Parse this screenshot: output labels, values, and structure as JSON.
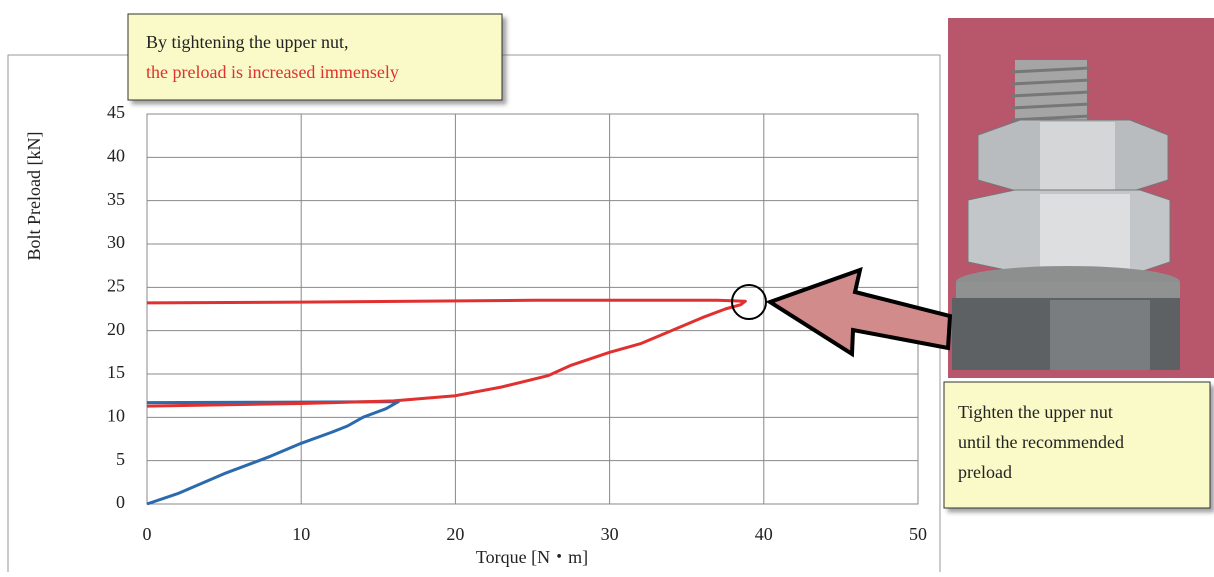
{
  "chart_data": {
    "type": "line",
    "xlabel": "Torque [N・m]",
    "ylabel": "Bolt Preload [kN]",
    "xlim": [
      0,
      50
    ],
    "xticks": [
      0,
      10,
      20,
      30,
      40,
      50
    ],
    "ylim": [
      0,
      45
    ],
    "yticks": [
      0,
      5,
      10,
      15,
      20,
      25,
      30,
      35,
      40,
      45
    ],
    "grid": true,
    "series": [
      {
        "color": "#2a6aad",
        "x": [
          0,
          2,
          5,
          8,
          10,
          12,
          13,
          14,
          15.5,
          16.3,
          8,
          0
        ],
        "values": [
          0,
          1.2,
          3.5,
          5.5,
          7,
          8.3,
          9,
          10,
          11,
          11.8,
          11.75,
          11.7
        ]
      },
      {
        "color": "#e03030",
        "x": [
          0,
          10,
          16,
          20,
          23,
          26,
          27.5,
          30,
          32,
          34,
          36,
          37.5,
          38.5,
          38.8,
          37,
          25,
          10,
          0
        ],
        "values": [
          11.3,
          11.6,
          11.9,
          12.5,
          13.5,
          14.8,
          16,
          17.5,
          18.5,
          20,
          21.5,
          22.5,
          23,
          23.4,
          23.5,
          23.5,
          23.3,
          23.2
        ]
      }
    ],
    "notes": {
      "top": [
        "By tightening the upper nut,",
        "the preload is increased immensely"
      ],
      "side": [
        "Tighten the upper nut",
        "until the recommended",
        "preload"
      ]
    }
  }
}
